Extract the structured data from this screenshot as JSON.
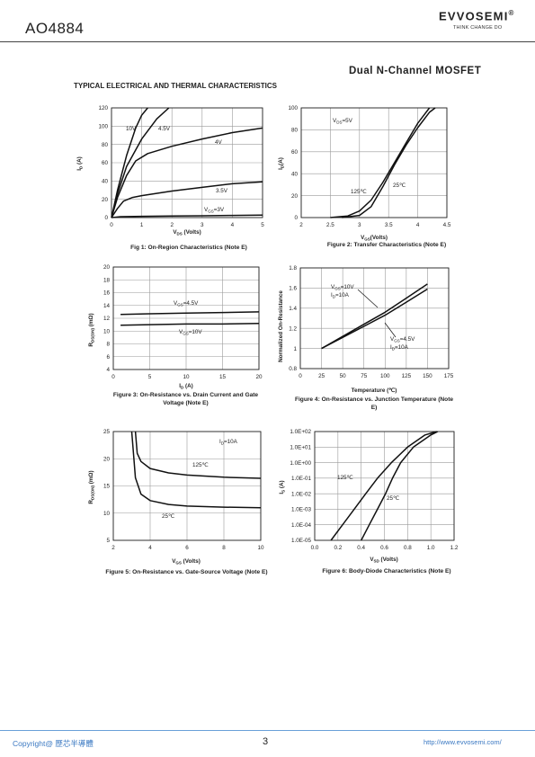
{
  "header": {
    "part_number": "AO4884",
    "brand": "EVVOSEMI",
    "registered_mark": "®",
    "tagline": "THINK CHANGE DO",
    "subtitle": "Dual  N-Channel  MOSFET",
    "section_title": "TYPICAL ELECTRICAL AND THERMAL CHARACTERISTICS"
  },
  "footer": {
    "copyright": "Copyright@ 歷芯半導體",
    "page": "3",
    "url": "http://www.evvosemi.com/"
  },
  "chart_data": [
    {
      "id": "fig1",
      "type": "line",
      "title": "Fig 1: On-Region Characteristics (Note E)",
      "xlabel": "VDS (Volts)",
      "ylabel": "ID (A)",
      "xlim": [
        0,
        5
      ],
      "ylim": [
        0,
        120
      ],
      "xticks": [
        0,
        1,
        2,
        3,
        4,
        5
      ],
      "yticks": [
        0,
        20,
        40,
        60,
        80,
        100,
        120
      ],
      "grid": true,
      "series": [
        {
          "name": "10V",
          "x": [
            0,
            0.2,
            0.5,
            0.8,
            1.0,
            1.2
          ],
          "y": [
            0,
            30,
            68,
            98,
            112,
            120
          ]
        },
        {
          "name": "4.5V",
          "x": [
            0,
            0.2,
            0.5,
            1.0,
            1.5,
            1.9
          ],
          "y": [
            0,
            26,
            56,
            86,
            108,
            120
          ]
        },
        {
          "name": "4V",
          "x": [
            0,
            0.2,
            0.5,
            0.8,
            1.2,
            2,
            3,
            4,
            5
          ],
          "y": [
            0,
            22,
            46,
            62,
            70,
            78,
            86,
            93,
            98
          ]
        },
        {
          "name": "3.5V",
          "x": [
            0,
            0.2,
            0.4,
            0.7,
            1,
            2,
            3,
            4,
            5
          ],
          "y": [
            0,
            10,
            18,
            22,
            24,
            29,
            33,
            37,
            39
          ]
        },
        {
          "name": "VGS=3V",
          "x": [
            0,
            0.3,
            1,
            2,
            3,
            4,
            5
          ],
          "y": [
            0,
            1,
            1.4,
            1.7,
            2.0,
            2.4,
            2.8
          ]
        }
      ],
      "annotations": [
        "10V",
        "4.5V",
        "4V",
        "3.5V",
        "VGS=3V"
      ]
    },
    {
      "id": "fig2",
      "type": "line",
      "title": "Figure 2: Transfer Characteristics (Note E)",
      "xlabel": "VGS(Volts)",
      "ylabel": "ID(A)",
      "xlim": [
        2,
        4.5
      ],
      "ylim": [
        0,
        100
      ],
      "xticks": [
        2,
        2.5,
        3,
        3.5,
        4,
        4.5
      ],
      "yticks": [
        0,
        20,
        40,
        60,
        80,
        100
      ],
      "grid": true,
      "series": [
        {
          "name": "125℃",
          "x": [
            2.5,
            2.8,
            3.0,
            3.2,
            3.4,
            3.6,
            3.8,
            4.0,
            4.2
          ],
          "y": [
            0,
            1.5,
            6,
            16,
            32,
            50,
            68,
            86,
            100
          ]
        },
        {
          "name": "25℃",
          "x": [
            2.7,
            3.0,
            3.2,
            3.4,
            3.6,
            3.8,
            4.0,
            4.2,
            4.3
          ],
          "y": [
            0,
            2,
            10,
            28,
            48,
            66,
            82,
            96,
            100
          ]
        }
      ],
      "annotations": [
        "VDS=5V",
        "125℃",
        "25℃"
      ]
    },
    {
      "id": "fig3",
      "type": "line",
      "title": "Figure 3: On-Resistance vs. Drain Current and Gate Voltage (Note E)",
      "xlabel": "ID (A)",
      "ylabel": "RDS(ON) (mΩ)",
      "xlim": [
        0,
        20
      ],
      "ylim": [
        4,
        20
      ],
      "xticks": [
        0,
        5,
        10,
        15,
        20
      ],
      "yticks": [
        4,
        6,
        8,
        10,
        12,
        14,
        16,
        18,
        20
      ],
      "grid": true,
      "series": [
        {
          "name": "VGS=4.5V",
          "x": [
            1,
            5,
            10,
            15,
            20
          ],
          "y": [
            12.6,
            12.7,
            12.8,
            12.9,
            13.0
          ]
        },
        {
          "name": "VGS=10V",
          "x": [
            1,
            5,
            10,
            15,
            20
          ],
          "y": [
            10.9,
            11.0,
            11.1,
            11.1,
            11.2
          ]
        }
      ],
      "annotations": [
        "VGS=4.5V",
        "VGS=10V"
      ]
    },
    {
      "id": "fig4",
      "type": "line",
      "title": "Figure 4: On-Resistance vs. Junction Temperature (Note E)",
      "xlabel": "Temperature (℃)",
      "ylabel": "Normalized On-Resistance",
      "xlim": [
        0,
        175
      ],
      "ylim": [
        0.8,
        1.8
      ],
      "xticks": [
        0,
        25,
        50,
        75,
        100,
        125,
        150,
        175
      ],
      "yticks": [
        0.8,
        1,
        1.2,
        1.4,
        1.6,
        1.8
      ],
      "grid": true,
      "series": [
        {
          "name": "VGS=10V, ID=10A",
          "x": [
            25,
            50,
            75,
            100,
            125,
            150
          ],
          "y": [
            1.0,
            1.12,
            1.24,
            1.36,
            1.5,
            1.64
          ]
        },
        {
          "name": "VGS=4.5V, ID=10A",
          "x": [
            25,
            50,
            75,
            100,
            125,
            150
          ],
          "y": [
            1.0,
            1.11,
            1.22,
            1.33,
            1.46,
            1.59
          ]
        }
      ],
      "annotations": [
        "VGS=10V",
        "ID=10A",
        "VGS=4.5V",
        "ID=10A"
      ]
    },
    {
      "id": "fig5",
      "type": "line",
      "title": "Figure 5: On-Resistance vs. Gate-Source Voltage (Note E)",
      "xlabel": "VGS (Volts)",
      "ylabel": "RDS(ON) (mΩ)",
      "xlim": [
        2,
        10
      ],
      "ylim": [
        5,
        25
      ],
      "xticks": [
        2,
        4,
        6,
        8,
        10
      ],
      "yticks": [
        5,
        10,
        15,
        20,
        25
      ],
      "grid": true,
      "series": [
        {
          "name": "125℃",
          "x": [
            3.2,
            3.3,
            3.5,
            4,
            5,
            6,
            8,
            10
          ],
          "y": [
            25,
            21,
            19.5,
            18.2,
            17.4,
            17.0,
            16.6,
            16.4
          ]
        },
        {
          "name": "25℃",
          "x": [
            3.0,
            3.2,
            3.5,
            4,
            5,
            6,
            8,
            10
          ],
          "y": [
            25,
            16.5,
            13.5,
            12.3,
            11.6,
            11.3,
            11.1,
            11.0
          ]
        }
      ],
      "annotations": [
        "ID=10A",
        "125℃",
        "25℃"
      ]
    },
    {
      "id": "fig6",
      "type": "line",
      "title": "Figure 6: Body-Diode Characteristics (Note E)",
      "xlabel": "VSD (Volts)",
      "ylabel": "IS (A)",
      "yscale": "log",
      "xlim": [
        0,
        1.2
      ],
      "ylim": [
        1e-05,
        100
      ],
      "xticks": [
        "0.0",
        "0.2",
        "0.4",
        "0.6",
        "0.8",
        "1.0",
        "1.2"
      ],
      "yticks": [
        "1.0E-05",
        "1.0E-04",
        "1.0E-03",
        "1.0E-02",
        "1.0E-01",
        "1.0E+00",
        "1.0E+01",
        "1.0E+02"
      ],
      "grid": true,
      "series": [
        {
          "name": "125℃",
          "x": [
            0.14,
            0.24,
            0.34,
            0.44,
            0.54,
            0.66,
            0.8,
            0.95,
            1.05
          ],
          "y": [
            1e-05,
            0.0001,
            0.001,
            0.01,
            0.1,
            1,
            10,
            60,
            100
          ]
        },
        {
          "name": "25℃",
          "x": [
            0.4,
            0.47,
            0.54,
            0.61,
            0.67,
            0.74,
            0.85,
            1.0,
            1.06
          ],
          "y": [
            1e-05,
            0.0001,
            0.001,
            0.01,
            0.1,
            1,
            10,
            60,
            100
          ]
        }
      ],
      "annotations": [
        "125℃",
        "25℃"
      ]
    }
  ]
}
